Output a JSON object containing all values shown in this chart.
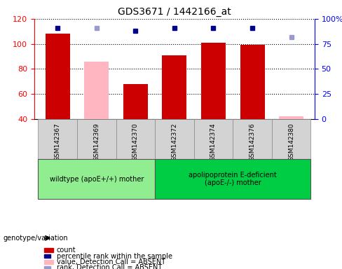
{
  "title": "GDS3671 / 1442166_at",
  "samples": [
    "GSM142367",
    "GSM142369",
    "GSM142370",
    "GSM142372",
    "GSM142374",
    "GSM142376",
    "GSM142380"
  ],
  "count_values": [
    108,
    null,
    68,
    91,
    101,
    99,
    null
  ],
  "count_absent_values": [
    null,
    86,
    null,
    null,
    null,
    null,
    42
  ],
  "percentile_values": [
    91,
    null,
    88,
    91,
    91,
    91,
    null
  ],
  "percentile_absent_values": [
    null,
    91,
    null,
    null,
    null,
    null,
    82
  ],
  "ylim_left": [
    40,
    120
  ],
  "ylim_right": [
    0,
    100
  ],
  "yticks_left": [
    40,
    60,
    80,
    100,
    120
  ],
  "yticks_right": [
    0,
    25,
    50,
    75,
    100
  ],
  "yticklabels_right": [
    "0",
    "25",
    "50",
    "75",
    "100%"
  ],
  "groups": [
    {
      "label": "wildtype (apoE+/+) mother",
      "samples": [
        "GSM142367",
        "GSM142369",
        "GSM142370"
      ],
      "color": "#90EE90"
    },
    {
      "label": "apolipoprotein E-deficient\n(apoE-/-) mother",
      "samples": [
        "GSM142372",
        "GSM142374",
        "GSM142376",
        "GSM142380"
      ],
      "color": "#00CC00"
    }
  ],
  "bar_width": 0.35,
  "color_count": "#CC0000",
  "color_count_absent": "#FFB6C1",
  "color_percentile": "#00008B",
  "color_percentile_absent": "#9999CC",
  "legend_items": [
    {
      "color": "#CC0000",
      "label": "count"
    },
    {
      "color": "#00008B",
      "label": "percentile rank within the sample"
    },
    {
      "color": "#FFB6C1",
      "label": "value, Detection Call = ABSENT"
    },
    {
      "color": "#9999CC",
      "label": "rank, Detection Call = ABSENT"
    }
  ],
  "genotype_label": "genotype/variation",
  "background_color": "#FFFFFF",
  "plot_bg_color": "#FFFFFF",
  "tick_bg_color": "#D3D3D3"
}
